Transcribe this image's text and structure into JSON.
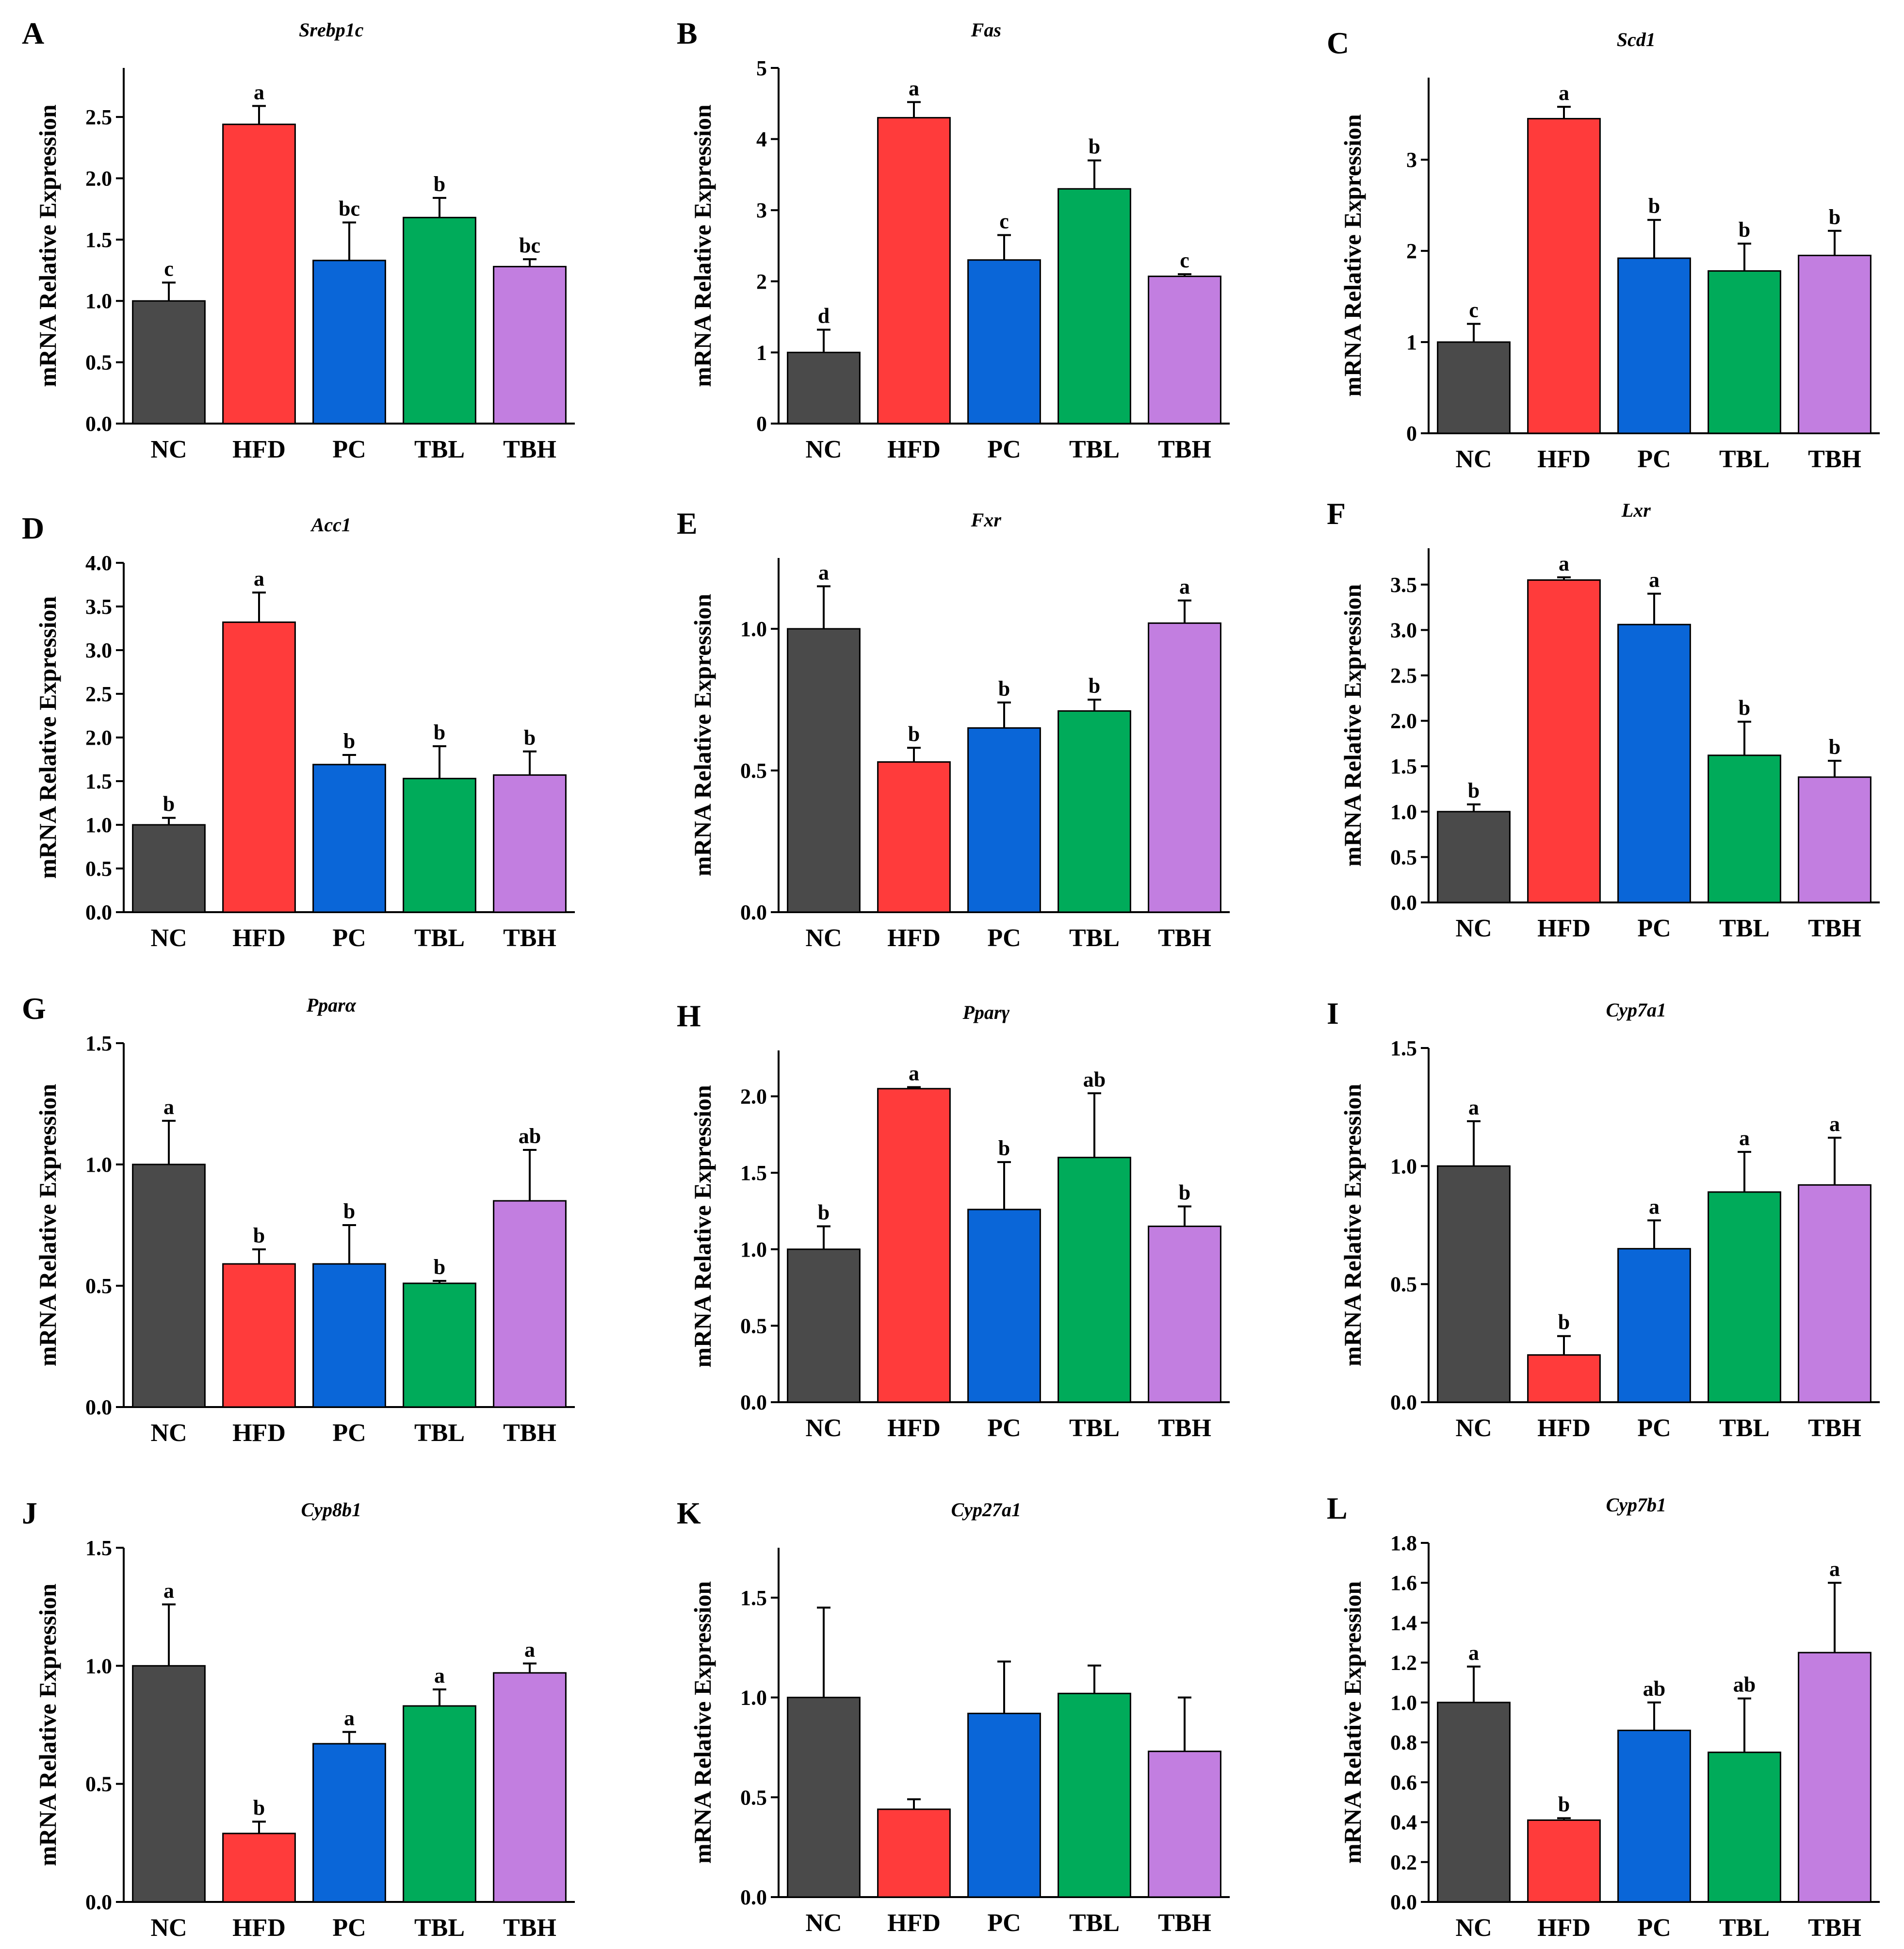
{
  "figure": {
    "y_axis_label": "mRNA Relative Expression",
    "categories": [
      "NC",
      "HFD",
      "PC",
      "TBL",
      "TBH"
    ],
    "bar_colors": [
      "#4a4a4a",
      "#ff3b3b",
      "#0a66d8",
      "#00ab5a",
      "#c27ee0"
    ]
  },
  "chart_data": [
    {
      "panel": "A",
      "type": "bar",
      "title": "Srebp1c",
      "ylabel": "mRNA Relative Expression",
      "categories": [
        "NC",
        "HFD",
        "PC",
        "TBL",
        "TBH"
      ],
      "values": [
        1.0,
        2.44,
        1.33,
        1.68,
        1.28
      ],
      "errors": [
        0.15,
        0.15,
        0.31,
        0.16,
        0.06
      ],
      "labels": [
        "c",
        "a",
        "bc",
        "b",
        "bc"
      ],
      "ylim": [
        0,
        2.9
      ],
      "yticks": [
        0.0,
        0.5,
        1.0,
        1.5,
        2.0,
        2.5
      ],
      "ytick_labels": [
        "0.0",
        "0.5",
        "1.0",
        "1.5",
        "2.0",
        "2.5"
      ]
    },
    {
      "panel": "B",
      "type": "bar",
      "title": "Fas",
      "ylabel": "mRNA Relative Expression",
      "categories": [
        "NC",
        "HFD",
        "PC",
        "TBL",
        "TBH"
      ],
      "values": [
        1.0,
        4.3,
        2.3,
        3.3,
        2.07
      ],
      "errors": [
        0.32,
        0.22,
        0.35,
        0.4,
        0.03
      ],
      "labels": [
        "d",
        "a",
        "c",
        "b",
        "c"
      ],
      "ylim": [
        0,
        5
      ],
      "yticks": [
        0,
        1,
        2,
        3,
        4,
        5
      ],
      "ytick_labels": [
        "0",
        "1",
        "2",
        "3",
        "4",
        "5"
      ]
    },
    {
      "panel": "C",
      "type": "bar",
      "title": "Scd1",
      "ylabel": "mRNA Relative Expression",
      "categories": [
        "NC",
        "HFD",
        "PC",
        "TBL",
        "TBH"
      ],
      "values": [
        1.0,
        3.45,
        1.92,
        1.78,
        1.95
      ],
      "errors": [
        0.2,
        0.13,
        0.42,
        0.3,
        0.27
      ],
      "labels": [
        "c",
        "a",
        "b",
        "b",
        "b"
      ],
      "ylim": [
        0,
        3.9
      ],
      "yticks": [
        0,
        1,
        2,
        3
      ],
      "ytick_labels": [
        "0",
        "1",
        "2",
        "3"
      ]
    },
    {
      "panel": "D",
      "type": "bar",
      "title": "Acc1",
      "ylabel": "mRNA Relative Expression",
      "categories": [
        "NC",
        "HFD",
        "PC",
        "TBL",
        "TBH"
      ],
      "values": [
        1.0,
        3.32,
        1.69,
        1.53,
        1.57
      ],
      "errors": [
        0.08,
        0.34,
        0.11,
        0.37,
        0.27
      ],
      "labels": [
        "b",
        "a",
        "b",
        "b",
        "b"
      ],
      "ylim": [
        0,
        4.0
      ],
      "yticks": [
        0.0,
        0.5,
        1.0,
        1.5,
        2.0,
        2.5,
        3.0,
        3.5,
        4.0
      ],
      "ytick_labels": [
        "0.0",
        "0.5",
        "1.0",
        "1.5",
        "2.0",
        "2.5",
        "3.0",
        "3.5",
        "4.0"
      ]
    },
    {
      "panel": "E",
      "type": "bar",
      "title": "Fxr",
      "ylabel": "mRNA Relative Expression",
      "categories": [
        "NC",
        "HFD",
        "PC",
        "TBL",
        "TBH"
      ],
      "values": [
        1.0,
        0.53,
        0.65,
        0.71,
        1.02
      ],
      "errors": [
        0.15,
        0.05,
        0.09,
        0.04,
        0.08
      ],
      "labels": [
        "a",
        "b",
        "b",
        "b",
        "a"
      ],
      "ylim": [
        0,
        1.25
      ],
      "yticks": [
        0.0,
        0.5,
        1.0
      ],
      "ytick_labels": [
        "0.0",
        "0.5",
        "1.0"
      ]
    },
    {
      "panel": "F",
      "type": "bar",
      "title": "Lxr",
      "ylabel": "mRNA Relative Expression",
      "categories": [
        "NC",
        "HFD",
        "PC",
        "TBL",
        "TBH"
      ],
      "values": [
        1.0,
        3.55,
        3.06,
        1.62,
        1.38
      ],
      "errors": [
        0.08,
        0.03,
        0.34,
        0.37,
        0.18
      ],
      "labels": [
        "b",
        "a",
        "a",
        "b",
        "b"
      ],
      "ylim": [
        0,
        3.9
      ],
      "yticks": [
        0.0,
        0.5,
        1.0,
        1.5,
        2.0,
        2.5,
        3.0,
        3.5
      ],
      "ytick_labels": [
        "0.0",
        "0.5",
        "1.0",
        "1.5",
        "2.0",
        "2.5",
        "3.0",
        "3.5"
      ]
    },
    {
      "panel": "G",
      "type": "bar",
      "title": "Pparα",
      "ylabel": "mRNA Relative Expression",
      "categories": [
        "NC",
        "HFD",
        "PC",
        "TBL",
        "TBH"
      ],
      "values": [
        1.0,
        0.59,
        0.59,
        0.51,
        0.85
      ],
      "errors": [
        0.18,
        0.06,
        0.16,
        0.01,
        0.21
      ],
      "labels": [
        "a",
        "b",
        "b",
        "b",
        "ab"
      ],
      "ylim": [
        0,
        1.5
      ],
      "yticks": [
        0.0,
        0.5,
        1.0,
        1.5
      ],
      "ytick_labels": [
        "0.0",
        "0.5",
        "1.0",
        "1.5"
      ]
    },
    {
      "panel": "H",
      "type": "bar",
      "title": "Pparγ",
      "ylabel": "mRNA Relative Expression",
      "categories": [
        "NC",
        "HFD",
        "PC",
        "TBL",
        "TBH"
      ],
      "values": [
        1.0,
        2.05,
        1.26,
        1.6,
        1.15
      ],
      "errors": [
        0.15,
        0.01,
        0.31,
        0.42,
        0.13
      ],
      "labels": [
        "b",
        "a",
        "b",
        "ab",
        "b"
      ],
      "ylim": [
        0,
        2.3
      ],
      "yticks": [
        0.0,
        0.5,
        1.0,
        1.5,
        2.0
      ],
      "ytick_labels": [
        "0.0",
        "0.5",
        "1.0",
        "1.5",
        "2.0"
      ]
    },
    {
      "panel": "I",
      "type": "bar",
      "title": "Cyp7a1",
      "ylabel": "mRNA Relative Expression",
      "categories": [
        "NC",
        "HFD",
        "PC",
        "TBL",
        "TBH"
      ],
      "values": [
        1.0,
        0.2,
        0.65,
        0.89,
        0.92
      ],
      "errors": [
        0.19,
        0.08,
        0.12,
        0.17,
        0.2
      ],
      "labels": [
        "a",
        "b",
        "a",
        "a",
        "a"
      ],
      "ylim": [
        0,
        1.5
      ],
      "yticks": [
        0.0,
        0.5,
        1.0,
        1.5
      ],
      "ytick_labels": [
        "0.0",
        "0.5",
        "1.0",
        "1.5"
      ]
    },
    {
      "panel": "J",
      "type": "bar",
      "title": "Cyp8b1",
      "ylabel": "mRNA Relative Expression",
      "categories": [
        "NC",
        "HFD",
        "PC",
        "TBL",
        "TBH"
      ],
      "values": [
        1.0,
        0.29,
        0.67,
        0.83,
        0.97
      ],
      "errors": [
        0.26,
        0.05,
        0.05,
        0.07,
        0.04
      ],
      "labels": [
        "a",
        "b",
        "a",
        "a",
        "a"
      ],
      "ylim": [
        0,
        1.5
      ],
      "yticks": [
        0.0,
        0.5,
        1.0,
        1.5
      ],
      "ytick_labels": [
        "0.0",
        "0.5",
        "1.0",
        "1.5"
      ]
    },
    {
      "panel": "K",
      "type": "bar",
      "title": "Cyp27a1",
      "ylabel": "mRNA Relative Expression",
      "categories": [
        "NC",
        "HFD",
        "PC",
        "TBL",
        "TBH"
      ],
      "values": [
        1.0,
        0.44,
        0.92,
        1.02,
        0.73
      ],
      "errors": [
        0.45,
        0.05,
        0.26,
        0.14,
        0.27
      ],
      "labels": [
        "",
        "",
        "",
        "",
        ""
      ],
      "ylim": [
        0,
        1.75
      ],
      "yticks": [
        0.0,
        0.5,
        1.0,
        1.5
      ],
      "ytick_labels": [
        "0.0",
        "0.5",
        "1.0",
        "1.5"
      ]
    },
    {
      "panel": "L",
      "type": "bar",
      "title": "Cyp7b1",
      "ylabel": "mRNA Relative Expression",
      "categories": [
        "NC",
        "HFD",
        "PC",
        "TBL",
        "TBH"
      ],
      "values": [
        1.0,
        0.41,
        0.86,
        0.75,
        1.25
      ],
      "errors": [
        0.18,
        0.01,
        0.14,
        0.27,
        0.35
      ],
      "labels": [
        "a",
        "b",
        "ab",
        "ab",
        "a"
      ],
      "ylim": [
        0,
        1.8
      ],
      "yticks": [
        0.0,
        0.2,
        0.4,
        0.6,
        0.8,
        1.0,
        1.2,
        1.4,
        1.6,
        1.8
      ],
      "ytick_labels": [
        "0.0",
        "0.2",
        "0.4",
        "0.6",
        "0.8",
        "1.0",
        "1.2",
        "1.4",
        "1.6",
        "1.8"
      ]
    }
  ]
}
